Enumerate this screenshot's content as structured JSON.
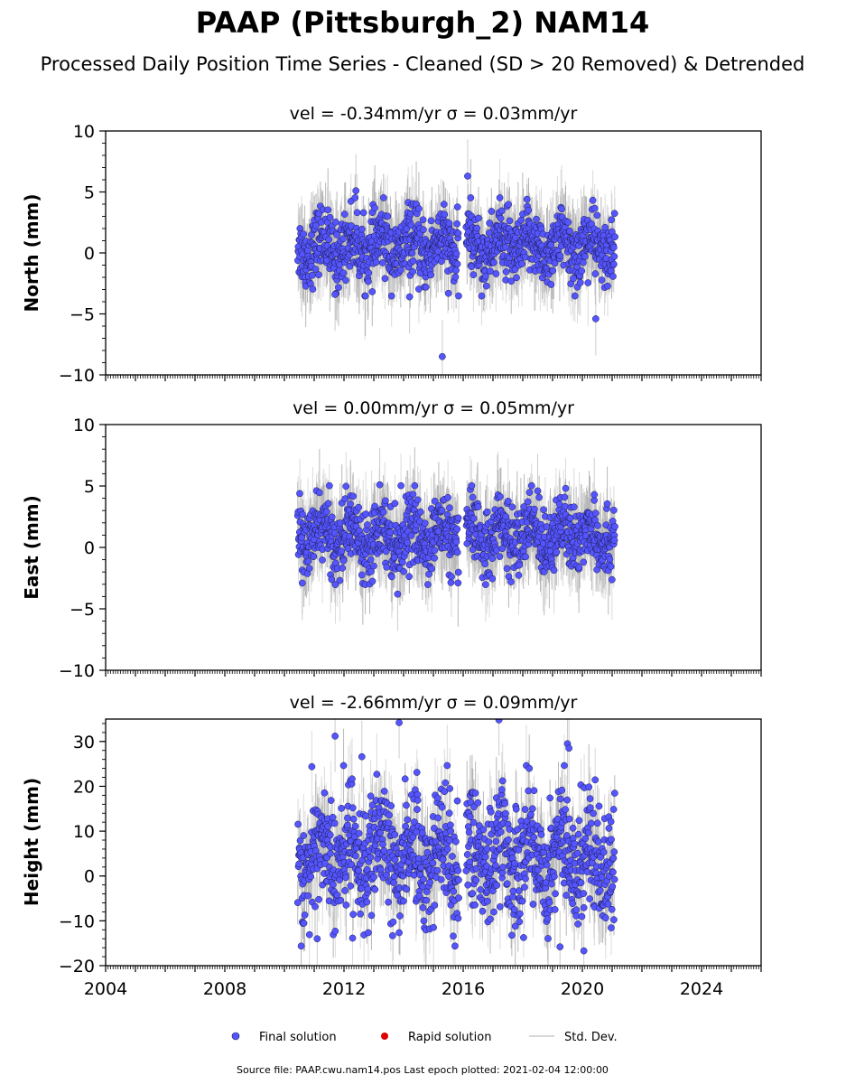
{
  "title": "PAAP (Pittsburgh_2) NAM14",
  "subtitle": "Processed Daily Position Time Series - Cleaned (SD > 20 Removed) & Detrended",
  "footer": "Source file: PAAP.cwu.nam14.pos  Last epoch plotted: 2021-02-04 12:00:00",
  "legend": {
    "final": "Final solution",
    "rapid": "Rapid solution",
    "stddev": "Std. Dev."
  },
  "colors": {
    "final_fill": "#5555ff",
    "final_edge": "#1a1a4a",
    "rapid_fill": "#dd0000",
    "stddev_line": "#cccccc"
  },
  "chart_data": [
    {
      "type": "scatter",
      "title": "vel = -0.34mm/yr   σ = 0.03mm/yr",
      "ylabel": "North (mm)",
      "xlim": [
        2004,
        2026
      ],
      "ylim": [
        -10,
        10
      ],
      "y_ticks": [
        -10,
        -5,
        0,
        5,
        10
      ],
      "y_tick_labels": [
        "−10",
        "−5",
        "0",
        "5",
        "10"
      ],
      "data_span": [
        2010.45,
        2021.09
      ],
      "gap": [
        2015.85,
        2016.1
      ],
      "typical_range": [
        -3,
        4
      ],
      "typical_std": 1.5,
      "outliers": [
        {
          "x": 2015.3,
          "y": -8.5
        },
        {
          "x": 2016.15,
          "y": 6.3
        },
        {
          "x": 2012.4,
          "y": 5.1
        },
        {
          "x": 2020.45,
          "y": -5.4
        },
        {
          "x": 2011.7,
          "y": -3.4
        },
        {
          "x": 2014.2,
          "y": -3.6
        }
      ]
    },
    {
      "type": "scatter",
      "title": "vel = 0.00mm/yr   σ = 0.05mm/yr",
      "ylabel": "East (mm)",
      "xlim": [
        2004,
        2026
      ],
      "ylim": [
        -10,
        10
      ],
      "y_ticks": [
        -10,
        -5,
        0,
        5,
        10
      ],
      "y_tick_labels": [
        "−10",
        "−5",
        "0",
        "5",
        "10"
      ],
      "data_span": [
        2010.45,
        2021.09
      ],
      "gap": [
        2015.85,
        2016.1
      ],
      "typical_range": [
        -2.5,
        4.5
      ],
      "typical_std": 1.5,
      "outliers": [
        {
          "x": 2013.2,
          "y": 5.1
        },
        {
          "x": 2010.6,
          "y": -2.9
        },
        {
          "x": 2013.8,
          "y": -3.8
        },
        {
          "x": 2018.5,
          "y": 4.6
        },
        {
          "x": 2020.4,
          "y": 4.3
        }
      ]
    },
    {
      "type": "scatter",
      "title": "vel = -2.66mm/yr   σ = 0.09mm/yr",
      "ylabel": "Height (mm)",
      "xlim": [
        2004,
        2026
      ],
      "ylim": [
        -20,
        35
      ],
      "y_ticks": [
        -20,
        -10,
        0,
        10,
        20,
        30
      ],
      "y_tick_labels": [
        "−20",
        "−10",
        "0",
        "10",
        "20",
        "30"
      ],
      "data_span": [
        2010.45,
        2021.09
      ],
      "gap": [
        2015.85,
        2016.1
      ],
      "typical_range": [
        -13,
        22
      ],
      "typical_std": 4,
      "outliers": [
        {
          "x": 2013.85,
          "y": 34.2
        },
        {
          "x": 2017.2,
          "y": 34.8
        },
        {
          "x": 2011.7,
          "y": 31.2
        },
        {
          "x": 2019.5,
          "y": 29.5
        },
        {
          "x": 2019.55,
          "y": 28.5
        },
        {
          "x": 2012.6,
          "y": 26.6
        },
        {
          "x": 2019.25,
          "y": -15.8
        },
        {
          "x": 2020.05,
          "y": -16.7
        },
        {
          "x": 2011.1,
          "y": -14
        }
      ]
    }
  ],
  "x_ticks": [
    2004,
    2008,
    2012,
    2016,
    2020,
    2024
  ],
  "x_tick_labels": [
    "2004",
    "2008",
    "2012",
    "2016",
    "2020",
    "2024"
  ]
}
